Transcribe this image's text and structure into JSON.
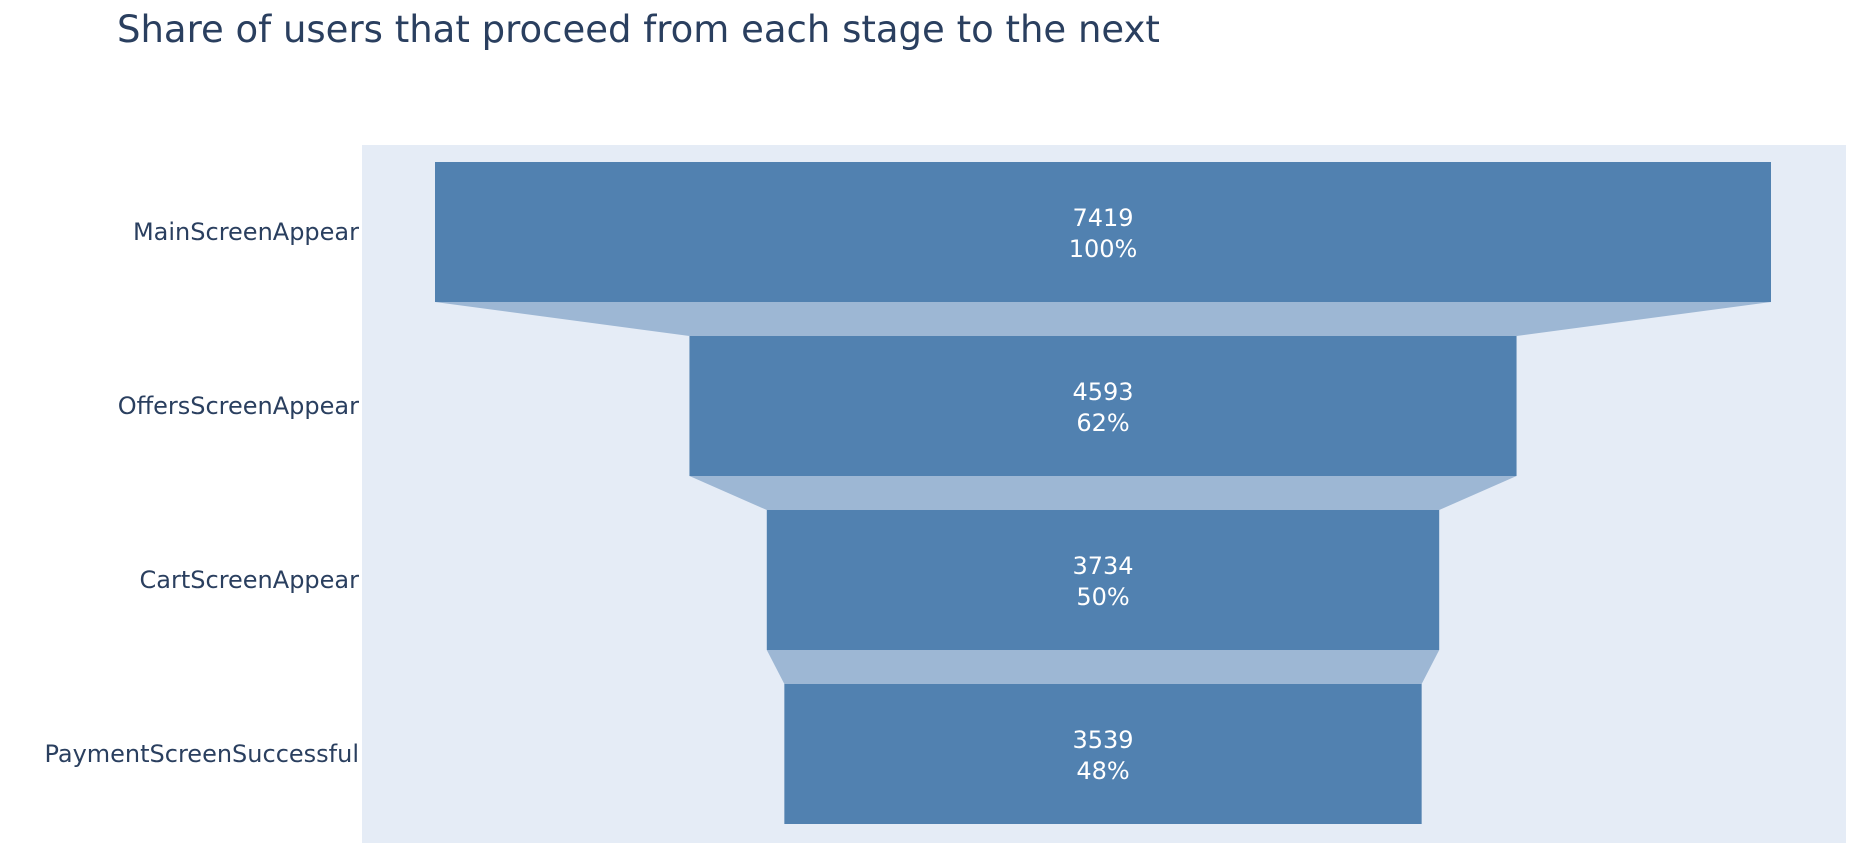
{
  "chart_data": {
    "type": "funnel",
    "title": "Share of users that proceed from each stage to the next",
    "stages": [
      {
        "label": "MainScreenAppear",
        "value": 7419,
        "percent": "100%"
      },
      {
        "label": "OffersScreenAppear",
        "value": 4593,
        "percent": "62%"
      },
      {
        "label": "CartScreenAppear",
        "value": 3734,
        "percent": "50%"
      },
      {
        "label": "PaymentScreenSuccessful",
        "value": 3539,
        "percent": "48%"
      }
    ]
  },
  "colors": {
    "plot_background": "#e5ecf6",
    "bar": "#5181b0",
    "connector": "#9db7d4",
    "text": "#2a3f5f",
    "value_text": "#ffffff"
  }
}
